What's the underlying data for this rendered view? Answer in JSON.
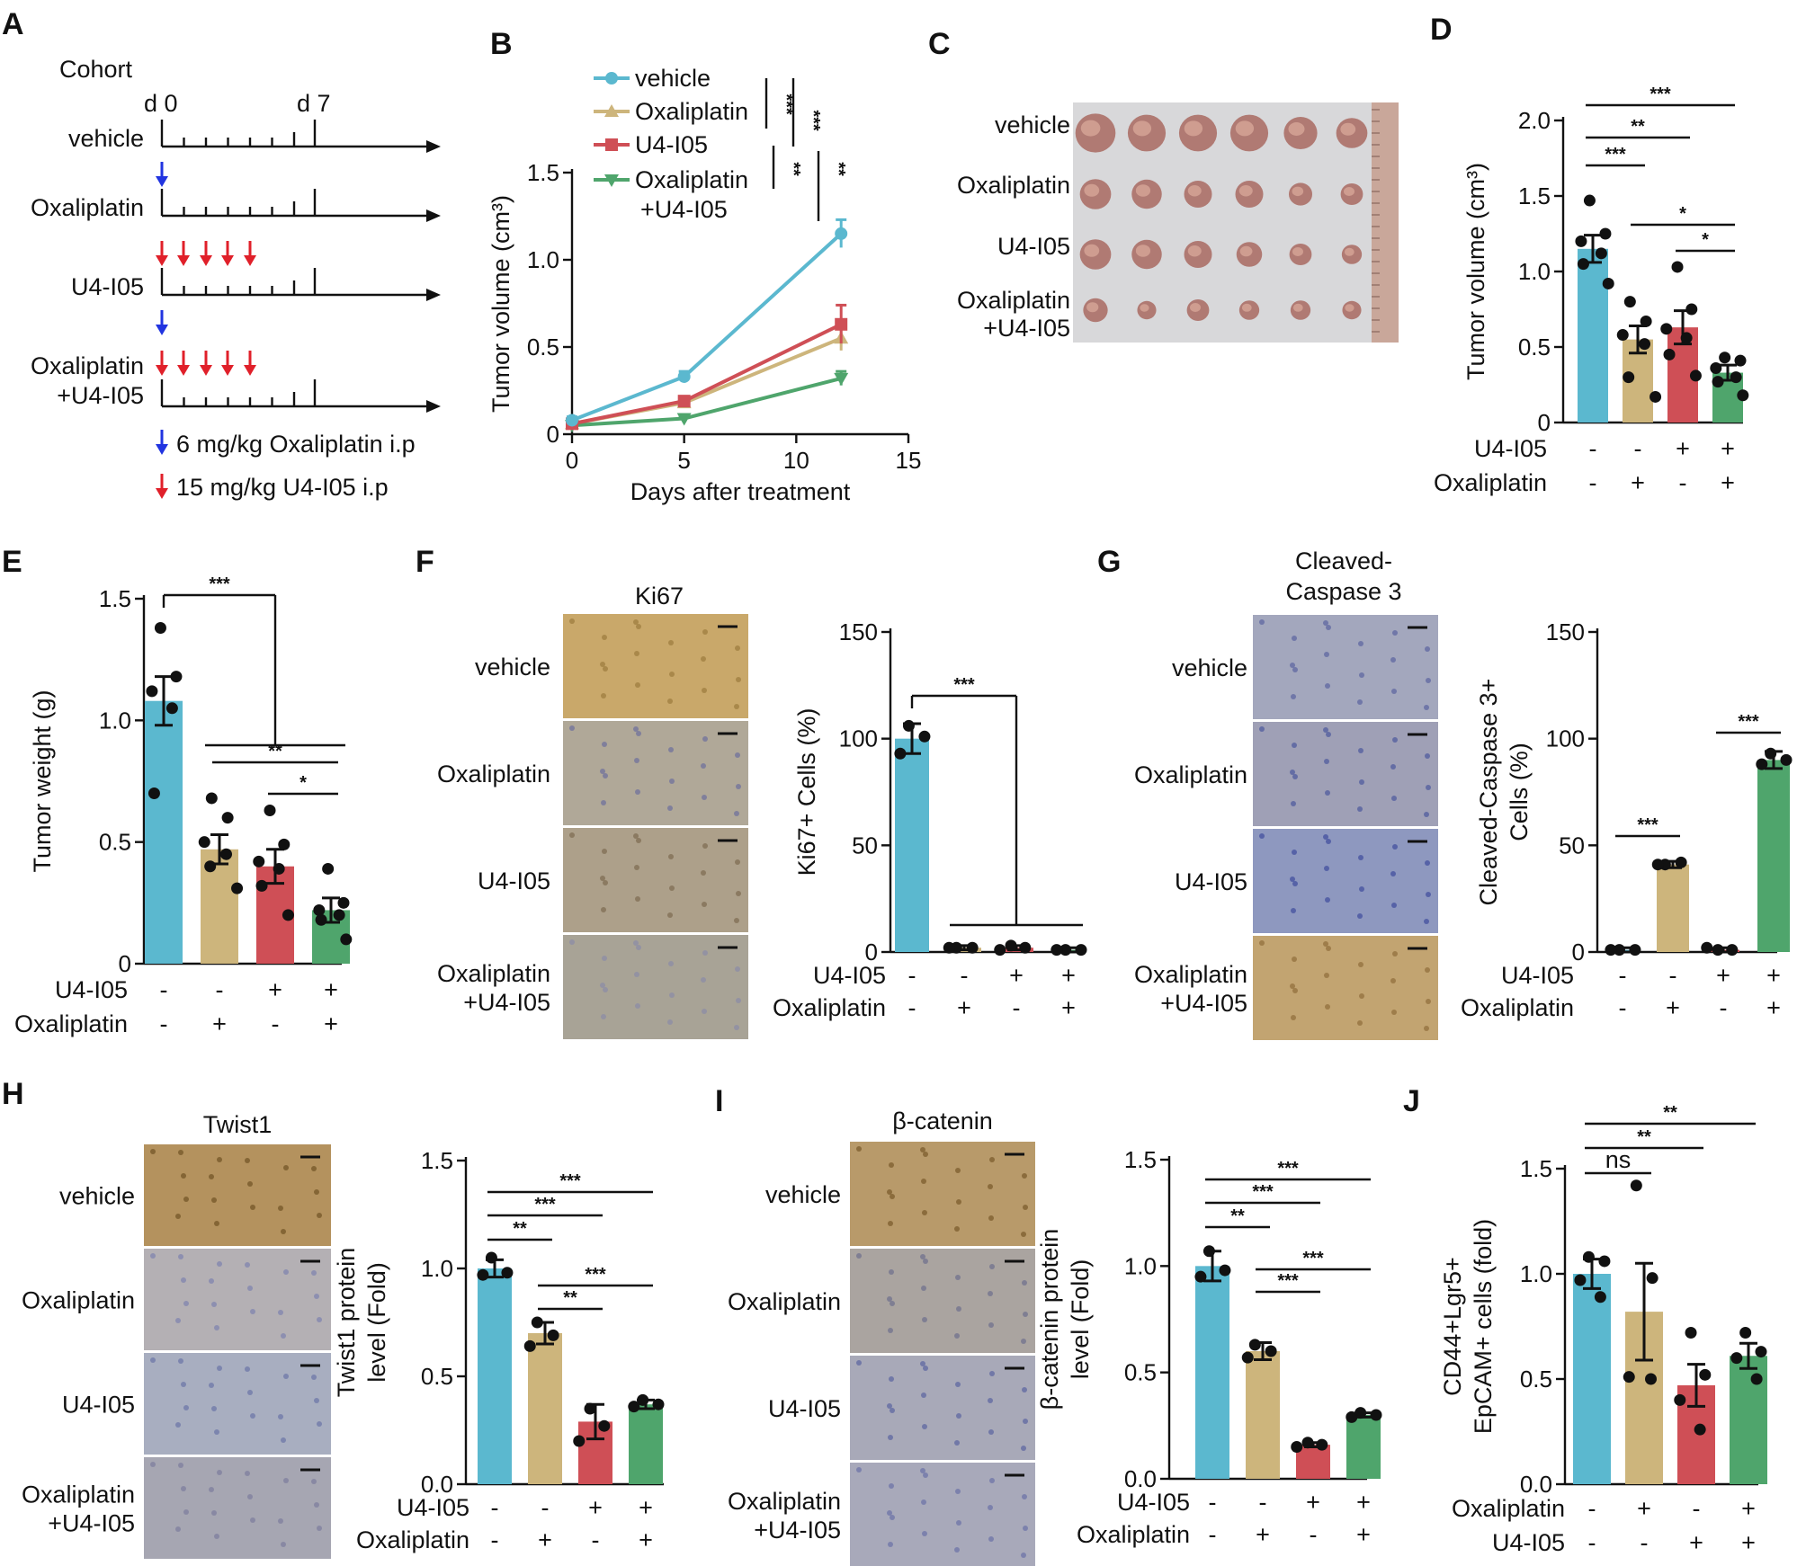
{
  "colors": {
    "vehicle": "#5bb8cf",
    "oxaliplatin": "#cdb57c",
    "u4i05": "#cf4f56",
    "combo": "#4fa56c",
    "blue_arrow": "#2134e0",
    "red_arrow": "#e0202a"
  },
  "groups": [
    "vehicle",
    "Oxaliplatin",
    "U4-I05",
    "Oxaliplatin\n+U4-I05"
  ],
  "panel_a": {
    "label": "A",
    "title": "Cohort",
    "day_start": "d 0",
    "day_end": "d 7",
    "rows": [
      "vehicle",
      "Oxaliplatin",
      "U4-I05",
      "Oxaliplatin",
      "+U4-I05"
    ],
    "legend": [
      "6 mg/kg Oxaliplatin i.p",
      "15 mg/kg U4-I05 i.p"
    ]
  },
  "panel_c": {
    "label": "C",
    "rows": [
      "vehicle",
      "Oxaliplatin",
      "U4-I05",
      "Oxaliplatin",
      "+U4-I05"
    ],
    "ruler_color": "#c9a79a"
  },
  "ihc": {
    "F": {
      "label": "F",
      "stain": "Ki67",
      "rows": [
        "vehicle",
        "Oxaliplatin",
        "U4-I05",
        "Oxaliplatin",
        "+U4-I05"
      ]
    },
    "G": {
      "label": "G",
      "stain_line1": "Cleaved-",
      "stain_line2": "Caspase 3",
      "rows": [
        "vehicle",
        "Oxaliplatin",
        "U4-I05",
        "Oxaliplatin",
        "+U4-I05"
      ]
    },
    "H": {
      "label": "H",
      "stain": "Twist1",
      "rows": [
        "vehicle",
        "Oxaliplatin",
        "U4-I05",
        "Oxaliplatin",
        "+U4-I05"
      ]
    },
    "I": {
      "label": "I",
      "stain": "β-catenin",
      "rows": [
        "vehicle",
        "Oxaliplatin",
        "U4-I05",
        "Oxaliplatin",
        "+U4-I05"
      ]
    }
  },
  "chart_data": [
    {
      "id": "B",
      "type": "line",
      "label": "B",
      "xlabel": "Days after treatment",
      "ylabel": "Tumor volume (cm³)",
      "xlim": [
        0,
        15
      ],
      "ylim": [
        0,
        1.5
      ],
      "xticks": [
        0,
        5,
        10,
        15
      ],
      "yticks": [
        0,
        0.5,
        1.0,
        1.5
      ],
      "x": [
        0,
        5,
        12
      ],
      "series": [
        {
          "name": "vehicle",
          "values": [
            0.08,
            0.33,
            1.15
          ],
          "err": [
            0.02,
            0.03,
            0.08
          ]
        },
        {
          "name": "Oxaliplatin",
          "values": [
            0.06,
            0.18,
            0.55
          ],
          "err": [
            0.01,
            0.02,
            0.07
          ]
        },
        {
          "name": "U4-I05",
          "values": [
            0.06,
            0.19,
            0.63
          ],
          "err": [
            0.01,
            0.02,
            0.11
          ]
        },
        {
          "name": "Oxaliplatin",
          "name2": "+U4-I05",
          "values": [
            0.05,
            0.09,
            0.32
          ],
          "err": [
            0.01,
            0.01,
            0.04
          ]
        }
      ],
      "sig": [
        "***",
        "***",
        "**",
        "**"
      ]
    },
    {
      "id": "D",
      "type": "bar",
      "label": "D",
      "ylabel": "Tumor volume (cm³)",
      "ylim": [
        0,
        2.0
      ],
      "yticks": [
        0,
        0.5,
        1.0,
        1.5,
        2.0
      ],
      "values": [
        1.15,
        0.55,
        0.63,
        0.33
      ],
      "err": [
        0.09,
        0.09,
        0.11,
        0.05
      ],
      "points": [
        [
          1.47,
          1.25,
          1.2,
          1.12,
          1.05,
          0.92
        ],
        [
          0.8,
          0.67,
          0.58,
          0.52,
          0.3,
          0.17
        ],
        [
          1.03,
          0.75,
          0.62,
          0.56,
          0.45,
          0.31
        ],
        [
          0.43,
          0.41,
          0.36,
          0.3,
          0.27,
          0.18
        ]
      ],
      "factor_labels": [
        "U4-I05",
        "Oxaliplatin"
      ],
      "factors": [
        [
          "-",
          "-",
          "+",
          "+"
        ],
        [
          "-",
          "+",
          "-",
          "+"
        ]
      ],
      "sig": [
        {
          "a": 0,
          "b": 3,
          "t": "***"
        },
        {
          "a": 0,
          "b": 2,
          "t": "**"
        },
        {
          "a": 0,
          "b": 1,
          "t": "***"
        },
        {
          "a": 1,
          "b": 3,
          "t": "*"
        },
        {
          "a": 2,
          "b": 3,
          "t": "*"
        }
      ]
    },
    {
      "id": "E",
      "type": "bar",
      "label": "E",
      "ylabel": "Tumor weight (g)",
      "ylim": [
        0,
        1.5
      ],
      "yticks": [
        0,
        0.5,
        1.0,
        1.5
      ],
      "values": [
        1.08,
        0.47,
        0.4,
        0.22
      ],
      "err": [
        0.1,
        0.06,
        0.07,
        0.05
      ],
      "points": [
        [
          1.38,
          1.18,
          1.12,
          1.05,
          0.7
        ],
        [
          0.68,
          0.6,
          0.5,
          0.45,
          0.4,
          0.31
        ],
        [
          0.63,
          0.49,
          0.42,
          0.39,
          0.32,
          0.2
        ],
        [
          0.39,
          0.25,
          0.22,
          0.2,
          0.18,
          0.1
        ]
      ],
      "factor_labels": [
        "U4-I05",
        "Oxaliplatin"
      ],
      "factors": [
        [
          "-",
          "-",
          "+",
          "+"
        ],
        [
          "-",
          "+",
          "-",
          "+"
        ]
      ],
      "sig": [
        {
          "a": 0,
          "b": 2,
          "t": "***",
          "bracket": "to_group"
        },
        {
          "a": 1,
          "b": 3,
          "t": "**"
        },
        {
          "a": 2,
          "b": 3,
          "t": "*"
        }
      ]
    },
    {
      "id": "F",
      "type": "bar",
      "ylabel": "Ki67+ Cells (%)",
      "ylim": [
        0,
        150
      ],
      "yticks": [
        0,
        50,
        100,
        150
      ],
      "values": [
        100,
        2,
        2,
        1
      ],
      "err": [
        7,
        1,
        1,
        1
      ],
      "points": [
        [
          106,
          101,
          93
        ],
        [
          2,
          2,
          2
        ],
        [
          3,
          2,
          1
        ],
        [
          1,
          1,
          1
        ]
      ],
      "factor_labels": [
        "U4-I05",
        "Oxaliplatin"
      ],
      "factors": [
        [
          "-",
          "-",
          "+",
          "+"
        ],
        [
          "-",
          "+",
          "-",
          "+"
        ]
      ],
      "sig": [
        {
          "a": 0,
          "b": 2,
          "t": "***",
          "bracket": "to_group"
        }
      ]
    },
    {
      "id": "G",
      "type": "bar",
      "ylabel": "Cleaved-Caspase 3+",
      "ylabel2": "Cells (%)",
      "ylim": [
        0,
        150
      ],
      "yticks": [
        0,
        50,
        100,
        150
      ],
      "values": [
        1,
        41,
        1,
        90
      ],
      "err": [
        1,
        1.5,
        1,
        4
      ],
      "points": [
        [
          1,
          1,
          1
        ],
        [
          41,
          42,
          41
        ],
        [
          1,
          1,
          2
        ],
        [
          93,
          90,
          88
        ]
      ],
      "factor_labels": [
        "U4-I05",
        "Oxaliplatin"
      ],
      "factors": [
        [
          "-",
          "-",
          "+",
          "+"
        ],
        [
          "-",
          "+",
          "-",
          "+"
        ]
      ],
      "sig": [
        {
          "a": 0,
          "b": 1,
          "t": "***"
        },
        {
          "a": 2,
          "b": 3,
          "t": "***"
        }
      ]
    },
    {
      "id": "H",
      "type": "bar",
      "ylabel": "Twist1 protein",
      "ylabel2": "level (Fold)",
      "ylim": [
        0,
        1.5
      ],
      "yticks": [
        0,
        0.5,
        1.0,
        1.5
      ],
      "values": [
        1.0,
        0.7,
        0.29,
        0.37
      ],
      "err": [
        0.04,
        0.05,
        0.08,
        0.02
      ],
      "points": [
        [
          1.05,
          0.98,
          0.97
        ],
        [
          0.75,
          0.69,
          0.64
        ],
        [
          0.35,
          0.27,
          0.2
        ],
        [
          0.39,
          0.37,
          0.36
        ]
      ],
      "factor_labels": [
        "U4-I05",
        "Oxaliplatin"
      ],
      "factors": [
        [
          "-",
          "-",
          "+",
          "+"
        ],
        [
          "-",
          "+",
          "-",
          "+"
        ]
      ],
      "sig": [
        {
          "a": 0,
          "b": 3,
          "t": "***"
        },
        {
          "a": 0,
          "b": 2,
          "t": "***"
        },
        {
          "a": 0,
          "b": 1,
          "t": "**"
        },
        {
          "a": 1,
          "b": 3,
          "t": "***"
        },
        {
          "a": 1,
          "b": 2,
          "t": "**"
        }
      ]
    },
    {
      "id": "I",
      "type": "bar",
      "ylabel": "β-catenin protein",
      "ylabel2": "level (Fold)",
      "ylim": [
        0,
        1.5
      ],
      "yticks": [
        0,
        0.5,
        1.0,
        1.5
      ],
      "values": [
        1.0,
        0.6,
        0.16,
        0.3
      ],
      "err": [
        0.07,
        0.04,
        0.01,
        0.01
      ],
      "points": [
        [
          1.07,
          0.98,
          0.95
        ],
        [
          0.63,
          0.6,
          0.57
        ],
        [
          0.17,
          0.16,
          0.15
        ],
        [
          0.31,
          0.3,
          0.29
        ]
      ],
      "factor_labels": [
        "U4-I05",
        "Oxaliplatin"
      ],
      "factors": [
        [
          "-",
          "-",
          "+",
          "+"
        ],
        [
          "-",
          "+",
          "-",
          "+"
        ]
      ],
      "sig": [
        {
          "a": 0,
          "b": 3,
          "t": "***"
        },
        {
          "a": 0,
          "b": 2,
          "t": "***"
        },
        {
          "a": 0,
          "b": 1,
          "t": "**"
        },
        {
          "a": 1,
          "b": 3,
          "t": "***"
        },
        {
          "a": 1,
          "b": 2,
          "t": "***"
        }
      ]
    },
    {
      "id": "J",
      "type": "bar",
      "label": "J",
      "ylabel": "CD44+Lgr5+",
      "ylabel2": "EpCAM+ cells (fold)",
      "ylim": [
        0,
        1.5
      ],
      "yticks": [
        0,
        0.5,
        1.0,
        1.5
      ],
      "values": [
        1.0,
        0.82,
        0.47,
        0.61
      ],
      "err": [
        0.07,
        0.23,
        0.1,
        0.06
      ],
      "points": [
        [
          1.08,
          1.06,
          0.97,
          0.89
        ],
        [
          1.42,
          0.98,
          0.51,
          0.5
        ],
        [
          0.72,
          0.52,
          0.4,
          0.26
        ],
        [
          0.72,
          0.63,
          0.6,
          0.5
        ]
      ],
      "factor_labels": [
        "Oxaliplatin",
        "U4-I05"
      ],
      "factors": [
        [
          "-",
          "+",
          "-",
          "+"
        ],
        [
          "-",
          "-",
          "+",
          "+"
        ]
      ],
      "sig": [
        {
          "a": 0,
          "b": 3,
          "t": "**"
        },
        {
          "a": 0,
          "b": 2,
          "t": "**"
        },
        {
          "a": 0,
          "b": 1,
          "t": "ns"
        }
      ]
    }
  ]
}
